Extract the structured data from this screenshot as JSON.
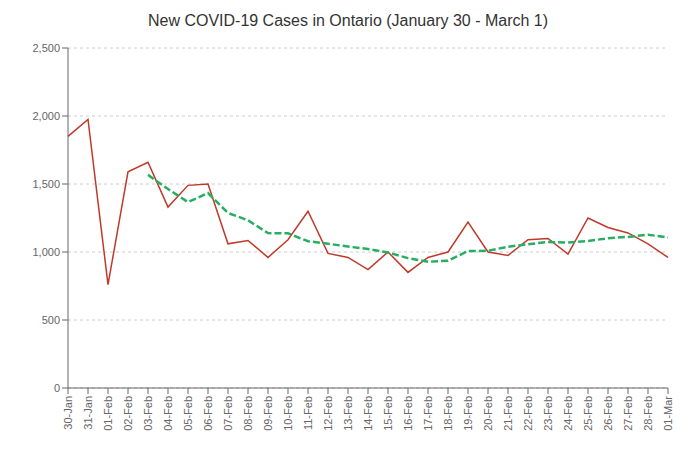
{
  "chart_data": {
    "type": "line",
    "title": "New COVID-19 Cases in Ontario (January 30 - March 1)",
    "categories": [
      "30-Jan",
      "31-Jan",
      "01-Feb",
      "02-Feb",
      "03-Feb",
      "04-Feb",
      "05-Feb",
      "06-Feb",
      "07-Feb",
      "08-Feb",
      "09-Feb",
      "10-Feb",
      "11-Feb",
      "12-Feb",
      "13-Feb",
      "14-Feb",
      "15-Feb",
      "16-Feb",
      "17-Feb",
      "18-Feb",
      "19-Feb",
      "20-Feb",
      "21-Feb",
      "22-Feb",
      "23-Feb",
      "24-Feb",
      "25-Feb",
      "26-Feb",
      "27-Feb",
      "28-Feb",
      "01-Mar"
    ],
    "series": [
      {
        "color": "#c0392b",
        "line_style": "solid",
        "values": [
          1850,
          1975,
          760,
          1590,
          1660,
          1330,
          1490,
          1500,
          1060,
          1085,
          960,
          1090,
          1300,
          990,
          960,
          870,
          1000,
          850,
          960,
          1000,
          1220,
          1000,
          975,
          1090,
          1100,
          985,
          1250,
          1180,
          1140,
          1060,
          960
        ]
      },
      {
        "color": "#27ae60",
        "line_style": "dashed",
        "values": [
          null,
          null,
          null,
          null,
          1567,
          1463,
          1367,
          1433,
          1287,
          1233,
          1139,
          1137,
          1079,
          1061,
          1040,
          1022,
          996,
          955,
          928,
          936,
          1007,
          1009,
          1039,
          1057,
          1074,
          1070,
          1081,
          1101,
          1111,
          1127,
          1107
        ]
      }
    ],
    "ylim": [
      0,
      2500
    ],
    "yticks": [
      0,
      500,
      {
        "value": 1000,
        "label": "1,000"
      },
      {
        "value": 1500,
        "label": "1,500"
      },
      {
        "value": 2000,
        "label": "2,000"
      },
      {
        "value": 2500,
        "label": "2,500"
      }
    ],
    "grid": true
  }
}
